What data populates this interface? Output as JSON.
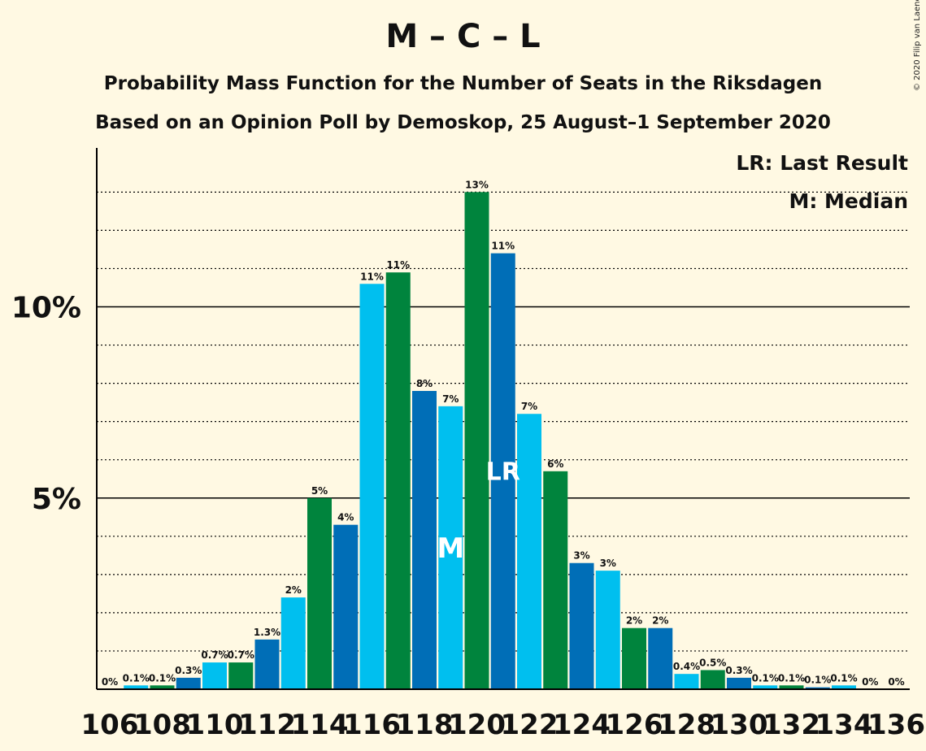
{
  "chart_data": {
    "type": "bar",
    "title": "M – C – L",
    "subtitle": "Probability Mass Function for the Number of Seats in the Riksdagen",
    "subtitle2": "Based on an Opinion Poll by Demoskop, 25 August–1 September 2020",
    "copyright": "© 2020 Filip van Laenen",
    "legend": [
      "LR: Last Result",
      "M: Median"
    ],
    "legend_position": "top-right",
    "x": [
      106,
      107,
      108,
      109,
      110,
      111,
      112,
      113,
      114,
      115,
      116,
      117,
      118,
      119,
      120,
      121,
      122,
      123,
      124,
      125,
      126,
      127,
      128,
      129,
      130,
      131,
      132,
      133,
      134,
      135,
      136
    ],
    "x_tick_labels": [
      "106",
      "108",
      "110",
      "112",
      "114",
      "116",
      "118",
      "120",
      "122",
      "124",
      "126",
      "128",
      "130",
      "132",
      "134",
      "136"
    ],
    "values": [
      0.0,
      0.1,
      0.1,
      0.3,
      0.7,
      0.7,
      1.3,
      2.4,
      5.0,
      4.3,
      10.6,
      10.9,
      7.8,
      7.4,
      13.0,
      11.4,
      7.2,
      5.7,
      3.3,
      3.1,
      1.6,
      1.6,
      0.4,
      0.5,
      0.3,
      0.1,
      0.1,
      0.05,
      0.1,
      0.0,
      0.0
    ],
    "data_labels": [
      "0%",
      "0.1%",
      "0.1%",
      "0.3%",
      "0.7%",
      "0.7%",
      "1.3%",
      "2%",
      "5%",
      "4%",
      "11%",
      "11%",
      "8%",
      "7%",
      "13%",
      "11%",
      "7%",
      "6%",
      "3%",
      "3%",
      "2%",
      "2%",
      "0.4%",
      "0.5%",
      "0.3%",
      "0.1%",
      "0.1%",
      "0.1%",
      "0.1%",
      "0%",
      "0%"
    ],
    "bar_colors": [
      "#006EB7",
      "#00BFEF",
      "#00843D"
    ],
    "median_seat": 119,
    "median_marker": "M",
    "last_result_seat": 121,
    "last_result_marker": "LR",
    "y_ticks": [
      {
        "value": 5,
        "label": "5%"
      },
      {
        "value": 10,
        "label": "10%"
      }
    ],
    "y_gridlines": [
      1,
      2,
      3,
      4,
      6,
      7,
      8,
      9,
      11,
      12,
      13
    ],
    "ylim": [
      0,
      14.1
    ]
  }
}
